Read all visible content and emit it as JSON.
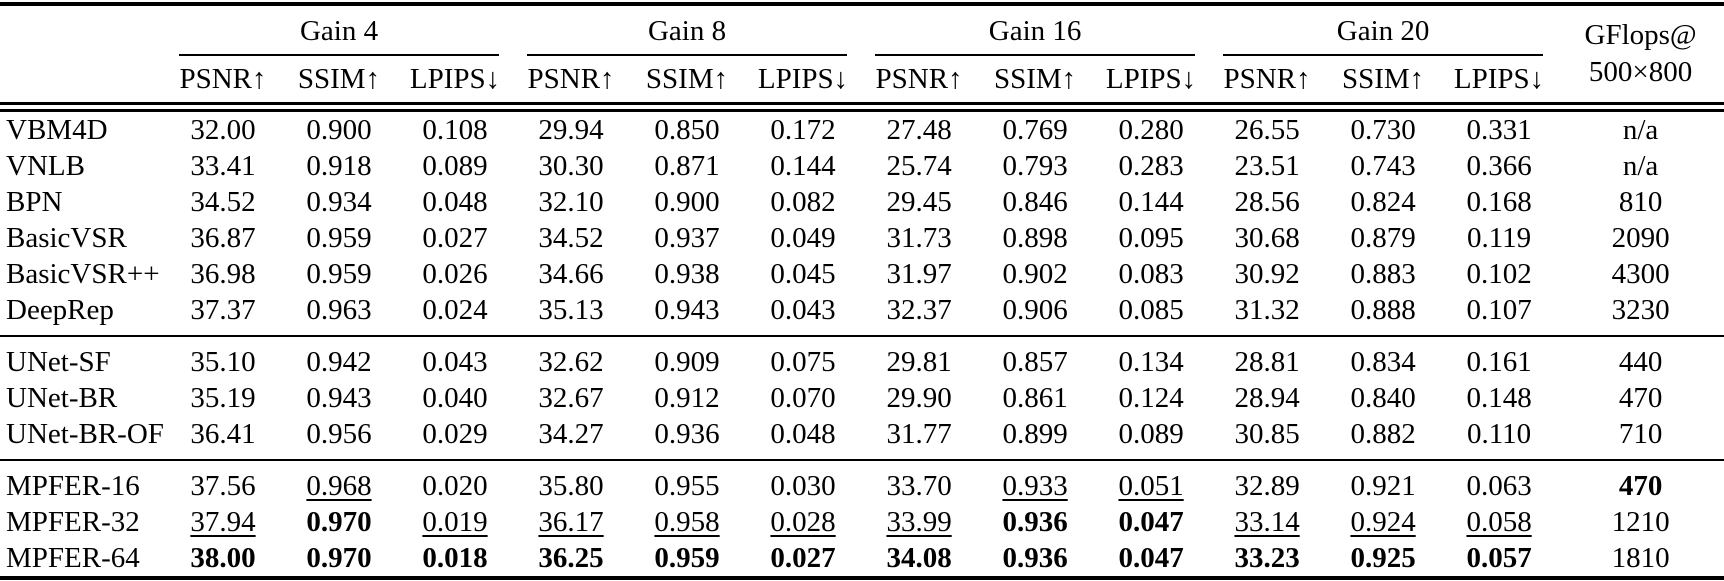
{
  "table": {
    "groups": [
      {
        "label": "Gain 4"
      },
      {
        "label": "Gain 8"
      },
      {
        "label": "Gain 16"
      },
      {
        "label": "Gain 20"
      }
    ],
    "metrics": [
      "PSNR↑",
      "SSIM↑",
      "LPIPS↓"
    ],
    "flops_header": [
      "GFlops@",
      "500×800"
    ],
    "sections": [
      {
        "rows": [
          {
            "method": "VBM4D",
            "cells": [
              {
                "t": "32.00",
                "f": "n"
              },
              {
                "t": "0.900",
                "f": "n"
              },
              {
                "t": "0.108",
                "f": "n"
              },
              {
                "t": "29.94",
                "f": "n"
              },
              {
                "t": "0.850",
                "f": "n"
              },
              {
                "t": "0.172",
                "f": "n"
              },
              {
                "t": "27.48",
                "f": "n"
              },
              {
                "t": "0.769",
                "f": "n"
              },
              {
                "t": "0.280",
                "f": "n"
              },
              {
                "t": "26.55",
                "f": "n"
              },
              {
                "t": "0.730",
                "f": "n"
              },
              {
                "t": "0.331",
                "f": "n"
              }
            ],
            "flops": {
              "t": "n/a",
              "f": "n"
            }
          },
          {
            "method": "VNLB",
            "cells": [
              {
                "t": "33.41",
                "f": "n"
              },
              {
                "t": "0.918",
                "f": "n"
              },
              {
                "t": "0.089",
                "f": "n"
              },
              {
                "t": "30.30",
                "f": "n"
              },
              {
                "t": "0.871",
                "f": "n"
              },
              {
                "t": "0.144",
                "f": "n"
              },
              {
                "t": "25.74",
                "f": "n"
              },
              {
                "t": "0.793",
                "f": "n"
              },
              {
                "t": "0.283",
                "f": "n"
              },
              {
                "t": "23.51",
                "f": "n"
              },
              {
                "t": "0.743",
                "f": "n"
              },
              {
                "t": "0.366",
                "f": "n"
              }
            ],
            "flops": {
              "t": "n/a",
              "f": "n"
            }
          },
          {
            "method": "BPN",
            "cells": [
              {
                "t": "34.52",
                "f": "n"
              },
              {
                "t": "0.934",
                "f": "n"
              },
              {
                "t": "0.048",
                "f": "n"
              },
              {
                "t": "32.10",
                "f": "n"
              },
              {
                "t": "0.900",
                "f": "n"
              },
              {
                "t": "0.082",
                "f": "n"
              },
              {
                "t": "29.45",
                "f": "n"
              },
              {
                "t": "0.846",
                "f": "n"
              },
              {
                "t": "0.144",
                "f": "n"
              },
              {
                "t": "28.56",
                "f": "n"
              },
              {
                "t": "0.824",
                "f": "n"
              },
              {
                "t": "0.168",
                "f": "n"
              }
            ],
            "flops": {
              "t": "810",
              "f": "n"
            }
          },
          {
            "method": "BasicVSR",
            "cells": [
              {
                "t": "36.87",
                "f": "n"
              },
              {
                "t": "0.959",
                "f": "n"
              },
              {
                "t": "0.027",
                "f": "n"
              },
              {
                "t": "34.52",
                "f": "n"
              },
              {
                "t": "0.937",
                "f": "n"
              },
              {
                "t": "0.049",
                "f": "n"
              },
              {
                "t": "31.73",
                "f": "n"
              },
              {
                "t": "0.898",
                "f": "n"
              },
              {
                "t": "0.095",
                "f": "n"
              },
              {
                "t": "30.68",
                "f": "n"
              },
              {
                "t": "0.879",
                "f": "n"
              },
              {
                "t": "0.119",
                "f": "n"
              }
            ],
            "flops": {
              "t": "2090",
              "f": "n"
            }
          },
          {
            "method": "BasicVSR++",
            "cells": [
              {
                "t": "36.98",
                "f": "n"
              },
              {
                "t": "0.959",
                "f": "n"
              },
              {
                "t": "0.026",
                "f": "n"
              },
              {
                "t": "34.66",
                "f": "n"
              },
              {
                "t": "0.938",
                "f": "n"
              },
              {
                "t": "0.045",
                "f": "n"
              },
              {
                "t": "31.97",
                "f": "n"
              },
              {
                "t": "0.902",
                "f": "n"
              },
              {
                "t": "0.083",
                "f": "n"
              },
              {
                "t": "30.92",
                "f": "n"
              },
              {
                "t": "0.883",
                "f": "n"
              },
              {
                "t": "0.102",
                "f": "n"
              }
            ],
            "flops": {
              "t": "4300",
              "f": "n"
            }
          },
          {
            "method": "DeepRep",
            "cells": [
              {
                "t": "37.37",
                "f": "n"
              },
              {
                "t": "0.963",
                "f": "n"
              },
              {
                "t": "0.024",
                "f": "n"
              },
              {
                "t": "35.13",
                "f": "n"
              },
              {
                "t": "0.943",
                "f": "n"
              },
              {
                "t": "0.043",
                "f": "n"
              },
              {
                "t": "32.37",
                "f": "n"
              },
              {
                "t": "0.906",
                "f": "n"
              },
              {
                "t": "0.085",
                "f": "n"
              },
              {
                "t": "31.32",
                "f": "n"
              },
              {
                "t": "0.888",
                "f": "n"
              },
              {
                "t": "0.107",
                "f": "n"
              }
            ],
            "flops": {
              "t": "3230",
              "f": "n"
            }
          }
        ]
      },
      {
        "rows": [
          {
            "method": "UNet-SF",
            "cells": [
              {
                "t": "35.10",
                "f": "n"
              },
              {
                "t": "0.942",
                "f": "n"
              },
              {
                "t": "0.043",
                "f": "n"
              },
              {
                "t": "32.62",
                "f": "n"
              },
              {
                "t": "0.909",
                "f": "n"
              },
              {
                "t": "0.075",
                "f": "n"
              },
              {
                "t": "29.81",
                "f": "n"
              },
              {
                "t": "0.857",
                "f": "n"
              },
              {
                "t": "0.134",
                "f": "n"
              },
              {
                "t": "28.81",
                "f": "n"
              },
              {
                "t": "0.834",
                "f": "n"
              },
              {
                "t": "0.161",
                "f": "n"
              }
            ],
            "flops": {
              "t": "440",
              "f": "n"
            }
          },
          {
            "method": "UNet-BR",
            "cells": [
              {
                "t": "35.19",
                "f": "n"
              },
              {
                "t": "0.943",
                "f": "n"
              },
              {
                "t": "0.040",
                "f": "n"
              },
              {
                "t": "32.67",
                "f": "n"
              },
              {
                "t": "0.912",
                "f": "n"
              },
              {
                "t": "0.070",
                "f": "n"
              },
              {
                "t": "29.90",
                "f": "n"
              },
              {
                "t": "0.861",
                "f": "n"
              },
              {
                "t": "0.124",
                "f": "n"
              },
              {
                "t": "28.94",
                "f": "n"
              },
              {
                "t": "0.840",
                "f": "n"
              },
              {
                "t": "0.148",
                "f": "n"
              }
            ],
            "flops": {
              "t": "470",
              "f": "n"
            }
          },
          {
            "method": "UNet-BR-OF",
            "cells": [
              {
                "t": "36.41",
                "f": "n"
              },
              {
                "t": "0.956",
                "f": "n"
              },
              {
                "t": "0.029",
                "f": "n"
              },
              {
                "t": "34.27",
                "f": "n"
              },
              {
                "t": "0.936",
                "f": "n"
              },
              {
                "t": "0.048",
                "f": "n"
              },
              {
                "t": "31.77",
                "f": "n"
              },
              {
                "t": "0.899",
                "f": "n"
              },
              {
                "t": "0.089",
                "f": "n"
              },
              {
                "t": "30.85",
                "f": "n"
              },
              {
                "t": "0.882",
                "f": "n"
              },
              {
                "t": "0.110",
                "f": "n"
              }
            ],
            "flops": {
              "t": "710",
              "f": "n"
            }
          }
        ]
      },
      {
        "rows": [
          {
            "method": "MPFER-16",
            "cells": [
              {
                "t": "37.56",
                "f": "n"
              },
              {
                "t": "0.968",
                "f": "u"
              },
              {
                "t": "0.020",
                "f": "n"
              },
              {
                "t": "35.80",
                "f": "n"
              },
              {
                "t": "0.955",
                "f": "n"
              },
              {
                "t": "0.030",
                "f": "n"
              },
              {
                "t": "33.70",
                "f": "n"
              },
              {
                "t": "0.933",
                "f": "u"
              },
              {
                "t": "0.051",
                "f": "u"
              },
              {
                "t": "32.89",
                "f": "n"
              },
              {
                "t": "0.921",
                "f": "n"
              },
              {
                "t": "0.063",
                "f": "n"
              }
            ],
            "flops": {
              "t": "470",
              "f": "b"
            }
          },
          {
            "method": "MPFER-32",
            "cells": [
              {
                "t": "37.94",
                "f": "u"
              },
              {
                "t": "0.970",
                "f": "b"
              },
              {
                "t": "0.019",
                "f": "u"
              },
              {
                "t": "36.17",
                "f": "u"
              },
              {
                "t": "0.958",
                "f": "u"
              },
              {
                "t": "0.028",
                "f": "u"
              },
              {
                "t": "33.99",
                "f": "u"
              },
              {
                "t": "0.936",
                "f": "b"
              },
              {
                "t": "0.047",
                "f": "b"
              },
              {
                "t": "33.14",
                "f": "u"
              },
              {
                "t": "0.924",
                "f": "u"
              },
              {
                "t": "0.058",
                "f": "u"
              }
            ],
            "flops": {
              "t": "1210",
              "f": "n"
            }
          },
          {
            "method": "MPFER-64",
            "cells": [
              {
                "t": "38.00",
                "f": "b"
              },
              {
                "t": "0.970",
                "f": "b"
              },
              {
                "t": "0.018",
                "f": "b"
              },
              {
                "t": "36.25",
                "f": "b"
              },
              {
                "t": "0.959",
                "f": "b"
              },
              {
                "t": "0.027",
                "f": "b"
              },
              {
                "t": "34.08",
                "f": "b"
              },
              {
                "t": "0.936",
                "f": "b"
              },
              {
                "t": "0.047",
                "f": "b"
              },
              {
                "t": "33.23",
                "f": "b"
              },
              {
                "t": "0.925",
                "f": "b"
              },
              {
                "t": "0.057",
                "f": "b"
              }
            ],
            "flops": {
              "t": "1810",
              "f": "n"
            }
          }
        ]
      }
    ]
  }
}
